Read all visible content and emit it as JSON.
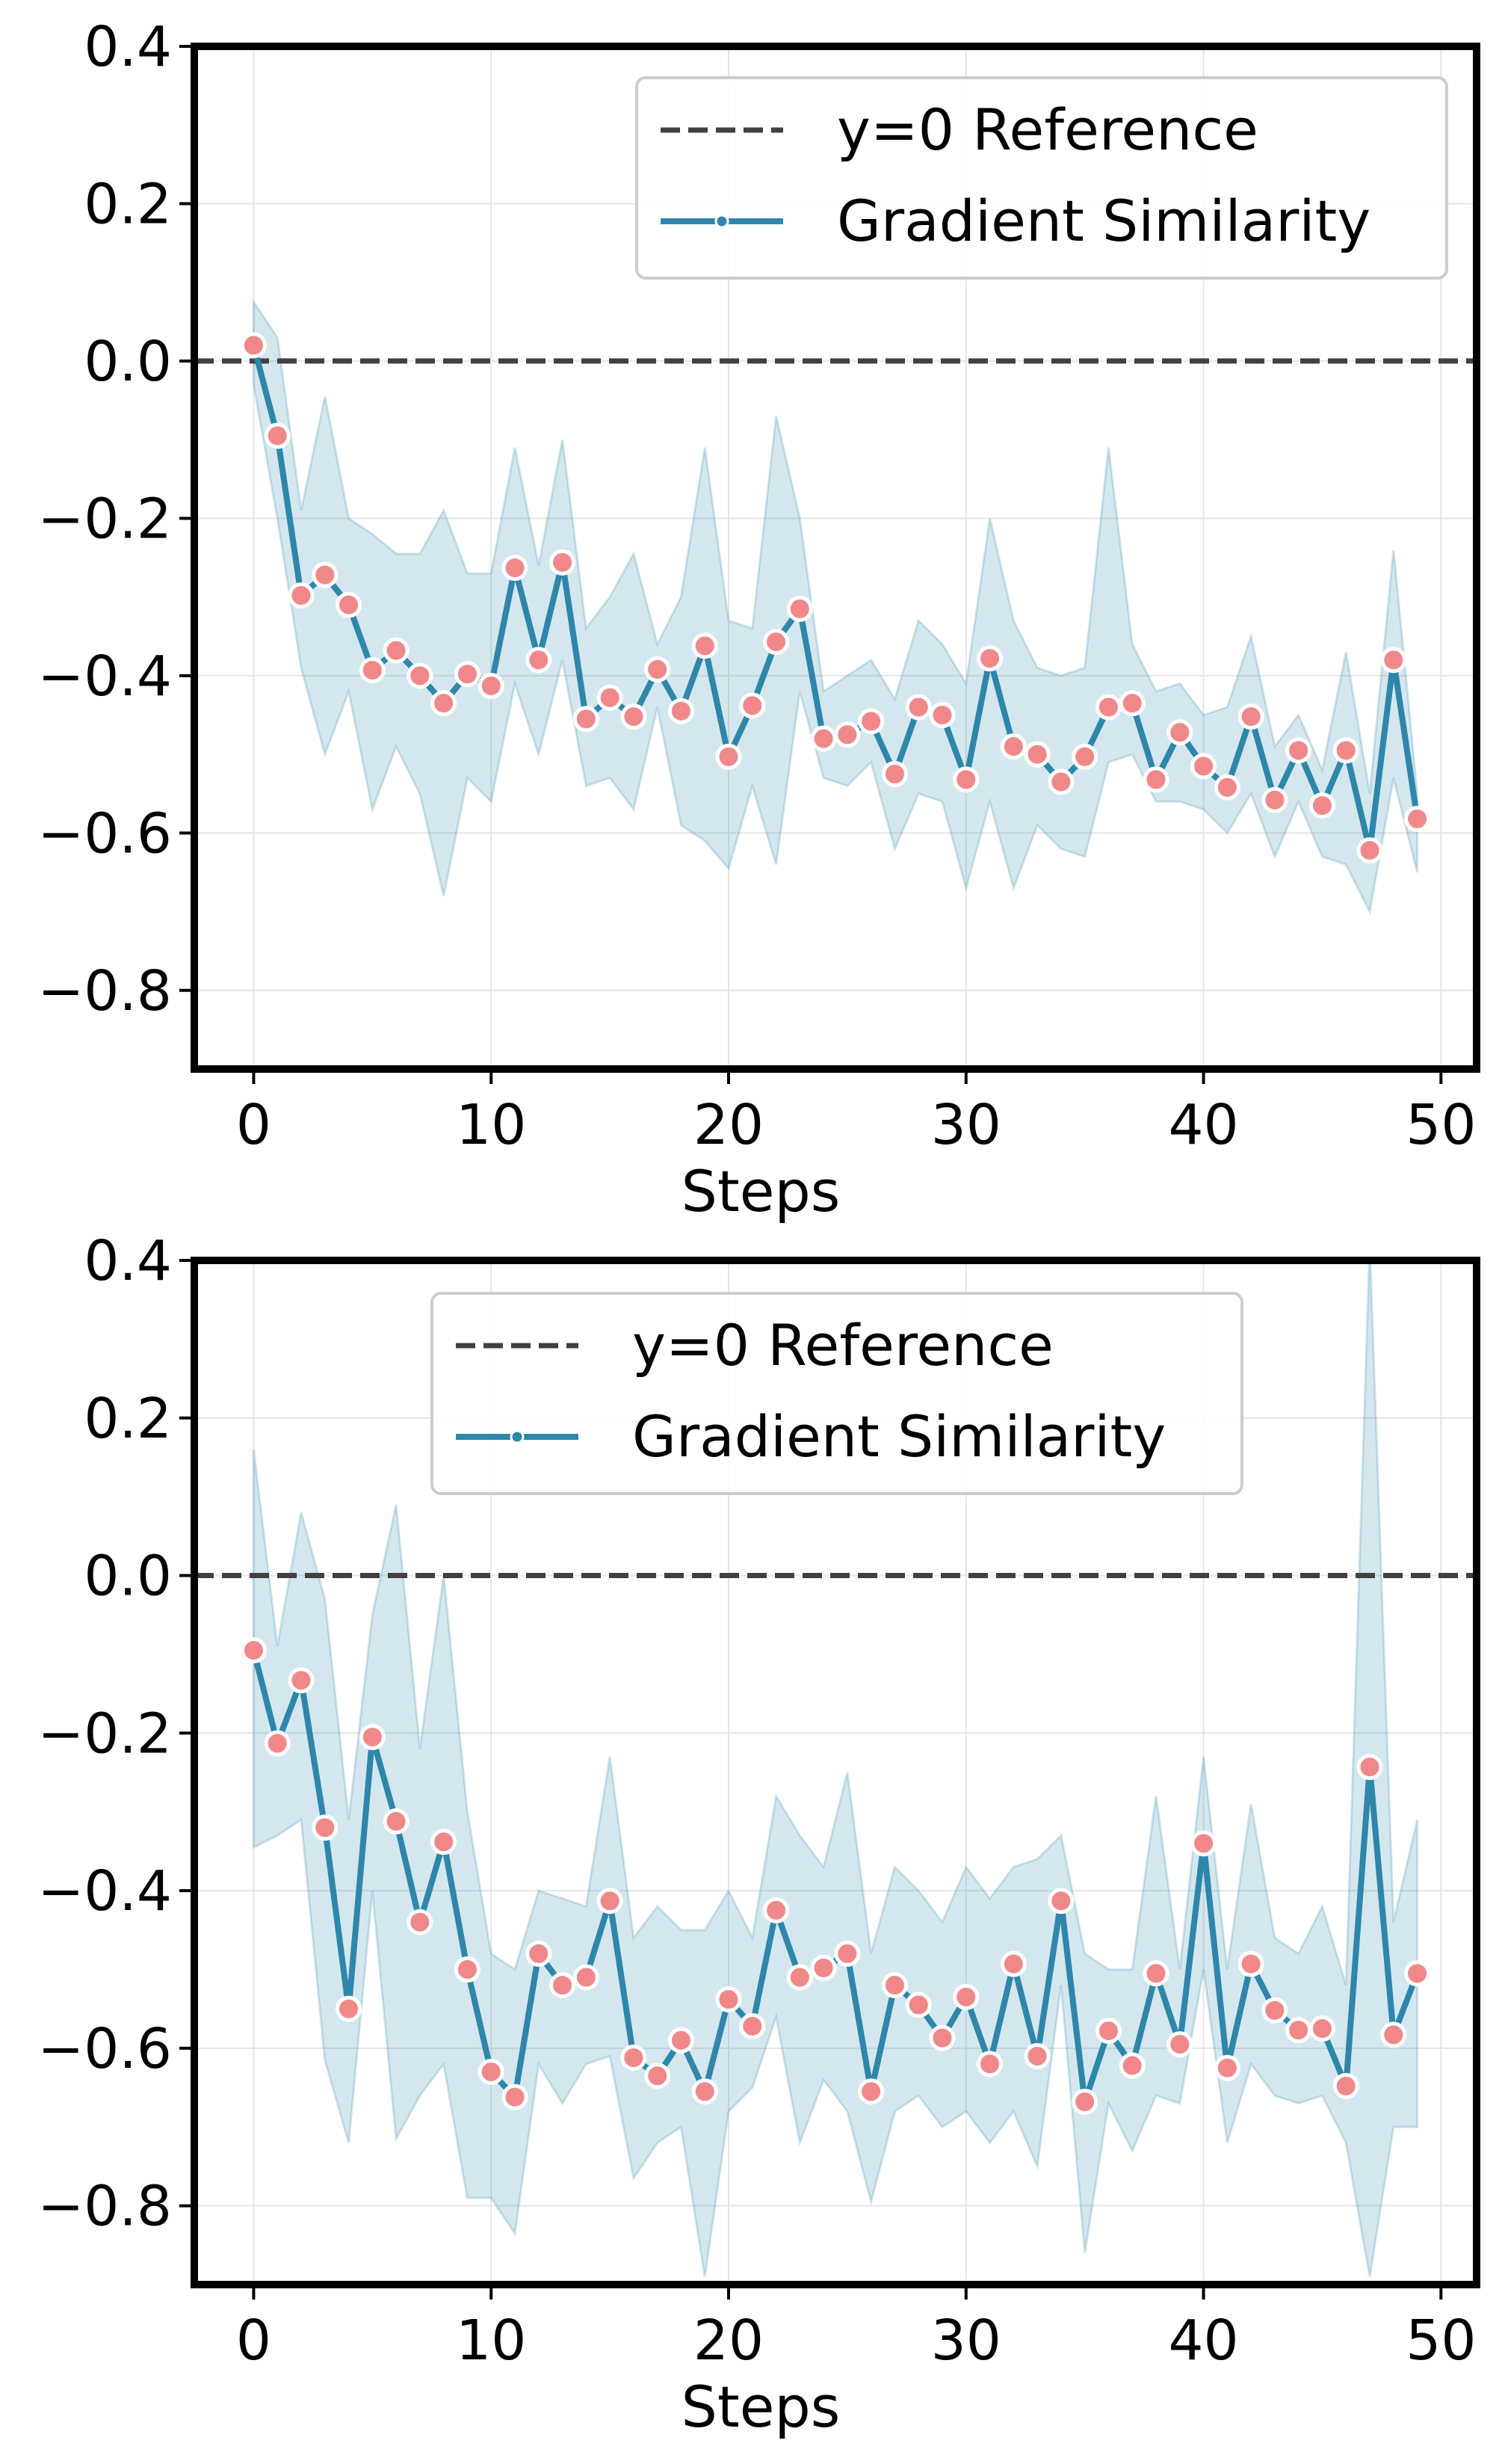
{
  "colors": {
    "line": "#2e86ab",
    "band": "#2e86ab",
    "marker_fill": "#f0888a",
    "marker_edge": "#ffffff",
    "reference": "#404040",
    "grid": "#e6e6e6",
    "spine": "#000000"
  },
  "chart_data": [
    {
      "type": "line",
      "title": "",
      "xlabel": "Steps",
      "ylabel": "",
      "xlim": [
        -2.5,
        51.5
      ],
      "ylim": [
        -0.9,
        0.4
      ],
      "xticks": [
        0,
        10,
        20,
        30,
        40,
        50
      ],
      "xtick_labels": [
        "0",
        "10",
        "20",
        "30",
        "40",
        "50"
      ],
      "yticks": [
        -0.8,
        -0.6,
        -0.4,
        -0.2,
        0.0,
        0.2,
        0.4
      ],
      "ytick_labels": [
        "−0.8",
        "−0.6",
        "−0.4",
        "−0.2",
        "0.0",
        "0.2",
        "0.4"
      ],
      "grid": true,
      "legend_position": "top-right",
      "legend": [
        "y=0 Reference",
        "Gradient Similarity"
      ],
      "reference_line": {
        "name": "y=0 Reference",
        "y": 0.0,
        "style": "dashed"
      },
      "series": [
        {
          "name": "Gradient Similarity",
          "x": [
            0,
            1,
            2,
            3,
            4,
            5,
            6,
            7,
            8,
            9,
            10,
            11,
            12,
            13,
            14,
            15,
            16,
            17,
            18,
            19,
            20,
            21,
            22,
            23,
            24,
            25,
            26,
            27,
            28,
            29,
            30,
            31,
            32,
            33,
            34,
            35,
            36,
            37,
            38,
            39,
            40,
            41,
            42,
            43,
            44,
            45,
            46,
            47,
            48,
            49
          ],
          "values": [
            0.02,
            -0.095,
            -0.298,
            -0.272,
            -0.31,
            -0.393,
            -0.368,
            -0.4,
            -0.435,
            -0.398,
            -0.413,
            -0.263,
            -0.38,
            -0.256,
            -0.455,
            -0.428,
            -0.452,
            -0.392,
            -0.445,
            -0.362,
            -0.503,
            -0.438,
            -0.357,
            -0.315,
            -0.48,
            -0.475,
            -0.458,
            -0.525,
            -0.44,
            -0.45,
            -0.532,
            -0.378,
            -0.49,
            -0.5,
            -0.535,
            -0.503,
            -0.44,
            -0.435,
            -0.532,
            -0.472,
            -0.515,
            -0.542,
            -0.452,
            -0.558,
            -0.495,
            -0.565,
            -0.495,
            -0.622,
            -0.38,
            -0.582
          ],
          "upper": [
            0.075,
            0.03,
            -0.19,
            -0.045,
            -0.2,
            -0.22,
            -0.245,
            -0.245,
            -0.19,
            -0.27,
            -0.27,
            -0.11,
            -0.26,
            -0.1,
            -0.34,
            -0.3,
            -0.245,
            -0.36,
            -0.3,
            -0.11,
            -0.33,
            -0.34,
            -0.07,
            -0.2,
            -0.42,
            -0.4,
            -0.38,
            -0.43,
            -0.33,
            -0.36,
            -0.41,
            -0.2,
            -0.33,
            -0.39,
            -0.4,
            -0.39,
            -0.11,
            -0.36,
            -0.42,
            -0.41,
            -0.45,
            -0.44,
            -0.35,
            -0.49,
            -0.45,
            -0.52,
            -0.37,
            -0.55,
            -0.24,
            -0.55
          ],
          "lower": [
            -0.03,
            -0.2,
            -0.39,
            -0.5,
            -0.42,
            -0.57,
            -0.49,
            -0.55,
            -0.68,
            -0.53,
            -0.56,
            -0.41,
            -0.5,
            -0.38,
            -0.54,
            -0.53,
            -0.57,
            -0.44,
            -0.59,
            -0.61,
            -0.645,
            -0.54,
            -0.64,
            -0.42,
            -0.53,
            -0.54,
            -0.51,
            -0.62,
            -0.55,
            -0.56,
            -0.67,
            -0.56,
            -0.67,
            -0.59,
            -0.62,
            -0.63,
            -0.51,
            -0.5,
            -0.56,
            -0.56,
            -0.57,
            -0.6,
            -0.55,
            -0.63,
            -0.56,
            -0.63,
            -0.64,
            -0.7,
            -0.53,
            -0.65
          ]
        }
      ]
    },
    {
      "type": "line",
      "title": "",
      "xlabel": "Steps",
      "ylabel": "",
      "xlim": [
        -2.5,
        51.5
      ],
      "ylim": [
        -0.9,
        0.4
      ],
      "xticks": [
        0,
        10,
        20,
        30,
        40,
        50
      ],
      "xtick_labels": [
        "0",
        "10",
        "20",
        "30",
        "40",
        "50"
      ],
      "yticks": [
        -0.8,
        -0.6,
        -0.4,
        -0.2,
        0.0,
        0.2,
        0.4
      ],
      "ytick_labels": [
        "−0.8",
        "−0.6",
        "−0.4",
        "−0.2",
        "0.0",
        "0.2",
        "0.4"
      ],
      "grid": true,
      "legend_position": "top-center",
      "legend": [
        "y=0 Reference",
        "Gradient Similarity"
      ],
      "reference_line": {
        "name": "y=0 Reference",
        "y": 0.0,
        "style": "dashed"
      },
      "series": [
        {
          "name": "Gradient Similarity",
          "x": [
            0,
            1,
            2,
            3,
            4,
            5,
            6,
            7,
            8,
            9,
            10,
            11,
            12,
            13,
            14,
            15,
            16,
            17,
            18,
            19,
            20,
            21,
            22,
            23,
            24,
            25,
            26,
            27,
            28,
            29,
            30,
            31,
            32,
            33,
            34,
            35,
            36,
            37,
            38,
            39,
            40,
            41,
            42,
            43,
            44,
            45,
            46,
            47,
            48,
            49
          ],
          "values": [
            -0.095,
            -0.213,
            -0.133,
            -0.32,
            -0.55,
            -0.205,
            -0.312,
            -0.44,
            -0.338,
            -0.5,
            -0.63,
            -0.662,
            -0.48,
            -0.52,
            -0.51,
            -0.413,
            -0.612,
            -0.635,
            -0.59,
            -0.655,
            -0.538,
            -0.572,
            -0.425,
            -0.51,
            -0.498,
            -0.48,
            -0.655,
            -0.52,
            -0.545,
            -0.587,
            -0.535,
            -0.62,
            -0.493,
            -0.61,
            -0.413,
            -0.668,
            -0.578,
            -0.622,
            -0.505,
            -0.595,
            -0.34,
            -0.625,
            -0.493,
            -0.552,
            -0.577,
            -0.575,
            -0.648,
            -0.243,
            -0.583,
            -0.505
          ],
          "upper": [
            0.16,
            -0.09,
            0.08,
            -0.03,
            -0.31,
            -0.05,
            0.09,
            -0.22,
            0.0,
            -0.3,
            -0.48,
            -0.5,
            -0.4,
            -0.41,
            -0.42,
            -0.23,
            -0.46,
            -0.42,
            -0.45,
            -0.45,
            -0.4,
            -0.46,
            -0.28,
            -0.33,
            -0.37,
            -0.25,
            -0.48,
            -0.37,
            -0.4,
            -0.44,
            -0.37,
            -0.41,
            -0.37,
            -0.36,
            -0.33,
            -0.48,
            -0.5,
            -0.5,
            -0.28,
            -0.5,
            -0.23,
            -0.5,
            -0.29,
            -0.46,
            -0.48,
            -0.42,
            -0.52,
            0.42,
            -0.44,
            -0.31
          ],
          "lower": [
            -0.345,
            -0.33,
            -0.31,
            -0.615,
            -0.72,
            -0.4,
            -0.715,
            -0.66,
            -0.62,
            -0.79,
            -0.79,
            -0.835,
            -0.62,
            -0.67,
            -0.62,
            -0.61,
            -0.765,
            -0.72,
            -0.7,
            -0.89,
            -0.68,
            -0.65,
            -0.56,
            -0.72,
            -0.64,
            -0.68,
            -0.795,
            -0.68,
            -0.66,
            -0.7,
            -0.68,
            -0.72,
            -0.68,
            -0.75,
            -0.52,
            -0.86,
            -0.67,
            -0.73,
            -0.66,
            -0.67,
            -0.5,
            -0.72,
            -0.62,
            -0.66,
            -0.67,
            -0.66,
            -0.72,
            -0.89,
            -0.7,
            -0.7
          ]
        }
      ]
    }
  ]
}
